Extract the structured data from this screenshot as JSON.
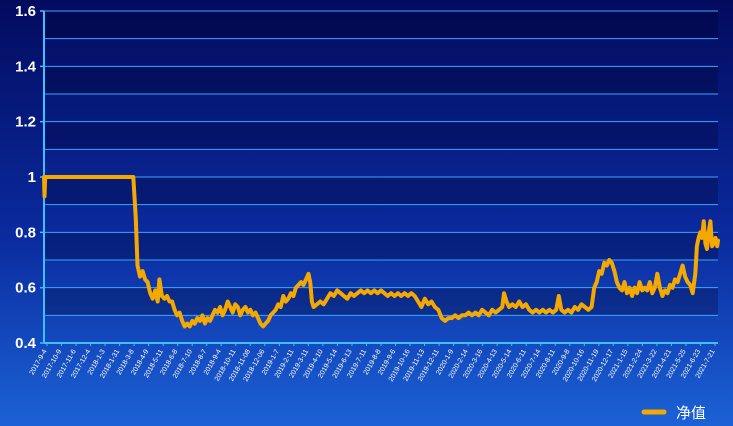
{
  "chart_data": {
    "type": "line",
    "ylim": [
      0.4,
      1.6
    ],
    "yticks": [
      "0.4",
      "0.6",
      "0.8",
      "1",
      "1.2",
      "1.4",
      "1.6"
    ],
    "grid": true,
    "legend_position": "bottom-right",
    "categories": [
      "2017-9-4",
      "2017-10-9",
      "2017-11-6",
      "2017-12-4",
      "2018-1-3",
      "2018-1-31",
      "2018-3-8",
      "2018-4-9",
      "2018-5-11",
      "2018-6-8",
      "2018-7-10",
      "2018-8-7",
      "2018-9-4",
      "2018-10-11",
      "2018-11-08",
      "2018-12-06",
      "2019-1-7",
      "2019-2-11",
      "2019-3-11",
      "2019-4-10",
      "2019-5-14",
      "2019-6-13",
      "2019-7-11",
      "2019-8-8",
      "2019-9-6",
      "2019-10-16",
      "2019-11-13",
      "2019-12-11",
      "2020-1-9",
      "2020-2-14",
      "2020-3-16",
      "2020-4-13",
      "2020-5-14",
      "2020-6-11",
      "2020-7-14",
      "2020-8-11",
      "2020-9-8",
      "2020-10-16",
      "2020-11-19",
      "2020-12-17",
      "2021-1-15",
      "2021-2-24",
      "2021-3-22",
      "2021-4-21",
      "2021-5-25",
      "2021-6-23",
      "2021-7-21"
    ],
    "series": [
      {
        "name": "净值",
        "color": "#f5a800",
        "points": [
          [
            0,
            1.0
          ],
          [
            0.03,
            0.93
          ],
          [
            0.07,
            1.0
          ],
          [
            0.5,
            1.0
          ],
          [
            1.0,
            1.0
          ],
          [
            1.5,
            1.0
          ],
          [
            2.0,
            1.0
          ],
          [
            2.5,
            1.0
          ],
          [
            3.0,
            1.0
          ],
          [
            3.5,
            1.0
          ],
          [
            4.0,
            1.0
          ],
          [
            4.5,
            1.0
          ],
          [
            5.0,
            1.0
          ],
          [
            5.3,
            1.0
          ],
          [
            5.45,
            0.85
          ],
          [
            5.55,
            0.68
          ],
          [
            5.7,
            0.64
          ],
          [
            5.85,
            0.66
          ],
          [
            6.0,
            0.63
          ],
          [
            6.15,
            0.62
          ],
          [
            6.3,
            0.58
          ],
          [
            6.45,
            0.56
          ],
          [
            6.6,
            0.59
          ],
          [
            6.75,
            0.55
          ],
          [
            6.85,
            0.63
          ],
          [
            7.0,
            0.57
          ],
          [
            7.15,
            0.56
          ],
          [
            7.3,
            0.57
          ],
          [
            7.45,
            0.55
          ],
          [
            7.6,
            0.55
          ],
          [
            7.75,
            0.52
          ],
          [
            7.9,
            0.5
          ],
          [
            8.05,
            0.51
          ],
          [
            8.2,
            0.48
          ],
          [
            8.35,
            0.46
          ],
          [
            8.5,
            0.47
          ],
          [
            8.65,
            0.46
          ],
          [
            8.8,
            0.48
          ],
          [
            8.95,
            0.47
          ],
          [
            9.1,
            0.49
          ],
          [
            9.25,
            0.48
          ],
          [
            9.4,
            0.5
          ],
          [
            9.55,
            0.47
          ],
          [
            9.7,
            0.49
          ],
          [
            9.85,
            0.48
          ],
          [
            10.0,
            0.5
          ],
          [
            10.15,
            0.52
          ],
          [
            10.3,
            0.51
          ],
          [
            10.45,
            0.53
          ],
          [
            10.6,
            0.5
          ],
          [
            10.75,
            0.52
          ],
          [
            10.9,
            0.55
          ],
          [
            11.05,
            0.53
          ],
          [
            11.2,
            0.51
          ],
          [
            11.35,
            0.54
          ],
          [
            11.5,
            0.53
          ],
          [
            11.65,
            0.5
          ],
          [
            11.8,
            0.52
          ],
          [
            11.95,
            0.53
          ],
          [
            12.1,
            0.51
          ],
          [
            12.25,
            0.52
          ],
          [
            12.4,
            0.5
          ],
          [
            12.55,
            0.51
          ],
          [
            12.7,
            0.49
          ],
          [
            12.85,
            0.47
          ],
          [
            13.0,
            0.46
          ],
          [
            13.15,
            0.47
          ],
          [
            13.3,
            0.48
          ],
          [
            13.45,
            0.5
          ],
          [
            13.6,
            0.51
          ],
          [
            13.75,
            0.52
          ],
          [
            13.9,
            0.54
          ],
          [
            14.05,
            0.53
          ],
          [
            14.2,
            0.57
          ],
          [
            14.35,
            0.55
          ],
          [
            14.5,
            0.56
          ],
          [
            14.65,
            0.58
          ],
          [
            14.8,
            0.57
          ],
          [
            14.95,
            0.6
          ],
          [
            15.1,
            0.61
          ],
          [
            15.25,
            0.62
          ],
          [
            15.4,
            0.61
          ],
          [
            15.55,
            0.63
          ],
          [
            15.7,
            0.65
          ],
          [
            15.8,
            0.62
          ],
          [
            15.9,
            0.55
          ],
          [
            16.0,
            0.53
          ],
          [
            16.2,
            0.54
          ],
          [
            16.4,
            0.55
          ],
          [
            16.6,
            0.54
          ],
          [
            16.8,
            0.56
          ],
          [
            17.0,
            0.58
          ],
          [
            17.2,
            0.57
          ],
          [
            17.4,
            0.59
          ],
          [
            17.6,
            0.58
          ],
          [
            17.8,
            0.57
          ],
          [
            18.0,
            0.56
          ],
          [
            18.2,
            0.58
          ],
          [
            18.4,
            0.57
          ],
          [
            18.6,
            0.58
          ],
          [
            18.8,
            0.59
          ],
          [
            19.0,
            0.58
          ],
          [
            19.2,
            0.59
          ],
          [
            19.4,
            0.58
          ],
          [
            19.6,
            0.59
          ],
          [
            19.8,
            0.58
          ],
          [
            20.0,
            0.59
          ],
          [
            20.2,
            0.58
          ],
          [
            20.4,
            0.57
          ],
          [
            20.6,
            0.58
          ],
          [
            20.8,
            0.57
          ],
          [
            21.0,
            0.58
          ],
          [
            21.2,
            0.57
          ],
          [
            21.4,
            0.58
          ],
          [
            21.6,
            0.57
          ],
          [
            21.8,
            0.58
          ],
          [
            22.0,
            0.57
          ],
          [
            22.2,
            0.55
          ],
          [
            22.4,
            0.53
          ],
          [
            22.6,
            0.56
          ],
          [
            22.8,
            0.54
          ],
          [
            23.0,
            0.55
          ],
          [
            23.2,
            0.53
          ],
          [
            23.4,
            0.52
          ],
          [
            23.6,
            0.49
          ],
          [
            23.8,
            0.48
          ],
          [
            24.0,
            0.49
          ],
          [
            24.2,
            0.49
          ],
          [
            24.4,
            0.5
          ],
          [
            24.6,
            0.49
          ],
          [
            24.8,
            0.5
          ],
          [
            25.0,
            0.5
          ],
          [
            25.2,
            0.51
          ],
          [
            25.4,
            0.5
          ],
          [
            25.6,
            0.51
          ],
          [
            25.8,
            0.5
          ],
          [
            26.0,
            0.52
          ],
          [
            26.2,
            0.51
          ],
          [
            26.4,
            0.5
          ],
          [
            26.6,
            0.52
          ],
          [
            26.8,
            0.51
          ],
          [
            27.0,
            0.52
          ],
          [
            27.2,
            0.53
          ],
          [
            27.3,
            0.58
          ],
          [
            27.45,
            0.55
          ],
          [
            27.6,
            0.53
          ],
          [
            27.8,
            0.54
          ],
          [
            28.0,
            0.53
          ],
          [
            28.2,
            0.55
          ],
          [
            28.4,
            0.53
          ],
          [
            28.6,
            0.54
          ],
          [
            28.8,
            0.52
          ],
          [
            29.0,
            0.51
          ],
          [
            29.2,
            0.52
          ],
          [
            29.4,
            0.51
          ],
          [
            29.6,
            0.52
          ],
          [
            29.8,
            0.51
          ],
          [
            30.0,
            0.52
          ],
          [
            30.2,
            0.51
          ],
          [
            30.4,
            0.52
          ],
          [
            30.55,
            0.57
          ],
          [
            30.7,
            0.52
          ],
          [
            30.9,
            0.51
          ],
          [
            31.1,
            0.52
          ],
          [
            31.3,
            0.51
          ],
          [
            31.5,
            0.53
          ],
          [
            31.7,
            0.52
          ],
          [
            31.9,
            0.54
          ],
          [
            32.1,
            0.53
          ],
          [
            32.3,
            0.52
          ],
          [
            32.5,
            0.53
          ],
          [
            32.65,
            0.6
          ],
          [
            32.8,
            0.62
          ],
          [
            32.95,
            0.66
          ],
          [
            33.1,
            0.65
          ],
          [
            33.25,
            0.69
          ],
          [
            33.4,
            0.68
          ],
          [
            33.55,
            0.7
          ],
          [
            33.7,
            0.69
          ],
          [
            33.85,
            0.66
          ],
          [
            34.0,
            0.62
          ],
          [
            34.15,
            0.6
          ],
          [
            34.3,
            0.59
          ],
          [
            34.45,
            0.62
          ],
          [
            34.6,
            0.58
          ],
          [
            34.75,
            0.6
          ],
          [
            34.9,
            0.57
          ],
          [
            35.05,
            0.6
          ],
          [
            35.2,
            0.58
          ],
          [
            35.35,
            0.62
          ],
          [
            35.5,
            0.59
          ],
          [
            35.65,
            0.6
          ],
          [
            35.8,
            0.59
          ],
          [
            35.95,
            0.62
          ],
          [
            36.1,
            0.58
          ],
          [
            36.25,
            0.6
          ],
          [
            36.4,
            0.65
          ],
          [
            36.55,
            0.6
          ],
          [
            36.7,
            0.57
          ],
          [
            36.85,
            0.59
          ],
          [
            37.0,
            0.58
          ],
          [
            37.15,
            0.61
          ],
          [
            37.3,
            0.6
          ],
          [
            37.45,
            0.63
          ],
          [
            37.6,
            0.62
          ],
          [
            37.75,
            0.65
          ],
          [
            37.9,
            0.68
          ],
          [
            38.05,
            0.64
          ],
          [
            38.2,
            0.62
          ],
          [
            38.35,
            0.61
          ],
          [
            38.5,
            0.58
          ],
          [
            38.65,
            0.65
          ],
          [
            38.75,
            0.75
          ],
          [
            38.85,
            0.78
          ],
          [
            38.95,
            0.8
          ],
          [
            39.05,
            0.78
          ],
          [
            39.15,
            0.84
          ],
          [
            39.25,
            0.76
          ],
          [
            39.35,
            0.74
          ],
          [
            39.45,
            0.8
          ],
          [
            39.55,
            0.84
          ],
          [
            39.65,
            0.75
          ],
          [
            39.75,
            0.76
          ],
          [
            39.85,
            0.78
          ],
          [
            39.95,
            0.75
          ],
          [
            40.0,
            0.77
          ]
        ]
      }
    ]
  }
}
